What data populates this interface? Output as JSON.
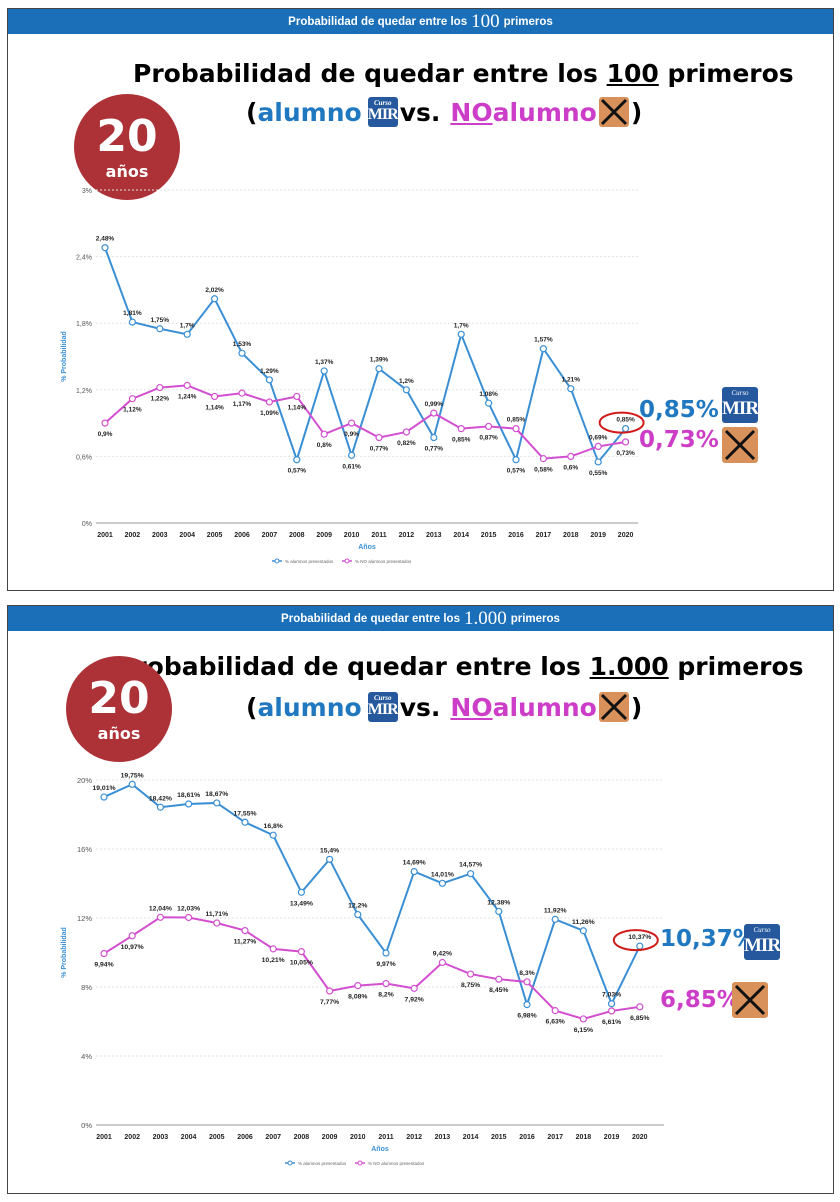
{
  "panel1": {
    "bar": {
      "pre": "Probabilidad de quedar entre los",
      "big": "100",
      "post": "primeros"
    },
    "title": {
      "pre": "Probabilidad de quedar entre los ",
      "num": "100",
      "post": " primeros"
    },
    "subtitle": {
      "open": "(",
      "alumno": "alumno ",
      "vs": "vs.",
      "no": "NO",
      "alumno2": " alumno",
      "close": ")"
    },
    "badge": {
      "num": "20",
      "word": "años"
    },
    "icon_text": {
      "top": "Curso",
      "main": "MIR"
    },
    "side": {
      "blue": "0,85%",
      "pink": "0,73%"
    }
  },
  "panel2": {
    "bar": {
      "pre": "Probabilidad de quedar entre los",
      "big": "1.000",
      "post": "primeros"
    },
    "title": {
      "pre": "Probabilidad de quedar entre los ",
      "num": "1.000",
      "post": " primeros"
    },
    "subtitle": {
      "open": "(",
      "alumno": "alumno ",
      "vs": "vs.",
      "no": "NO",
      "alumno2": " alumno",
      "close": ")"
    },
    "badge": {
      "num": "20",
      "word": "años"
    },
    "icon_text": {
      "top": "Curso",
      "main": "MIR"
    },
    "side": {
      "blue": "10,37%",
      "pink": "6,85%"
    }
  },
  "colors": {
    "blue": "#3a8fd4",
    "pink": "#d24fd0",
    "header": "#1b6fb8",
    "badge": "#ac3237",
    "circle": "#d11b1b"
  },
  "chart_data": [
    {
      "type": "line",
      "xlabel": "Años",
      "ylabel": "% Probabilidad",
      "ylim": [
        0,
        3
      ],
      "yticks": [
        "0%",
        "0,6%",
        "1,2%",
        "1,8%",
        "2,4%",
        "3%"
      ],
      "ytick_values": [
        0,
        0.6,
        1.2,
        1.8,
        2.4,
        3
      ],
      "categories": [
        "2001",
        "2002",
        "2003",
        "2004",
        "2005",
        "2006",
        "2007",
        "2008",
        "2009",
        "2010",
        "2011",
        "2012",
        "2013",
        "2014",
        "2015",
        "2016",
        "2017",
        "2018",
        "2019",
        "2020"
      ],
      "grid": true,
      "legend": "bottom-center",
      "series": [
        {
          "name": "% alumnos presentados",
          "color": "#3a8fd4",
          "values": [
            2.48,
            1.81,
            1.75,
            1.7,
            2.02,
            1.53,
            1.29,
            0.57,
            1.37,
            0.61,
            1.39,
            1.2,
            0.77,
            1.7,
            1.08,
            0.57,
            1.57,
            1.21,
            0.55,
            0.85
          ],
          "labels": [
            "2,48%",
            "1,81%",
            "1,75%",
            "1,7%",
            "2,02%",
            "1,53%",
            "1,29%",
            "0,57%",
            "1,37%",
            "0,61%",
            "1,39%",
            "1,2%",
            "0,77%",
            "1,7%",
            "1,08%",
            "0,57%",
            "1,57%",
            "1,21%",
            "0,55%",
            "0,85%"
          ]
        },
        {
          "name": "% NO alumnos presentados",
          "color": "#d24fd0",
          "values": [
            0.9,
            1.12,
            1.22,
            1.24,
            1.14,
            1.17,
            1.09,
            1.14,
            0.8,
            0.9,
            0.77,
            0.82,
            0.99,
            0.85,
            0.87,
            0.85,
            0.58,
            0.6,
            0.69,
            0.73
          ],
          "labels": [
            "0,9%",
            "1,12%",
            "1,22%",
            "1,24%",
            "1,14%",
            "1,17%",
            "1,09%",
            "1,14%",
            "0,8%",
            "0,9%",
            "0,77%",
            "0,82%",
            "0,99%",
            "0,85%",
            "0,87%",
            "0,85%",
            "0,58%",
            "0,6%",
            "0,69%",
            "0,73%"
          ]
        }
      ]
    },
    {
      "type": "line",
      "xlabel": "Años",
      "ylabel": "% Probabilidad",
      "ylim": [
        0,
        20
      ],
      "yticks": [
        "0%",
        "4%",
        "8%",
        "12%",
        "16%",
        "20%"
      ],
      "ytick_values": [
        0,
        4,
        8,
        12,
        16,
        20
      ],
      "categories": [
        "2001",
        "2002",
        "2003",
        "2004",
        "2005",
        "2006",
        "2007",
        "2008",
        "2009",
        "2010",
        "2011",
        "2012",
        "2013",
        "2014",
        "2015",
        "2016",
        "2017",
        "2018",
        "2019",
        "2020"
      ],
      "grid": true,
      "legend": "bottom-center",
      "series": [
        {
          "name": "% alumnos presentados",
          "color": "#3a8fd4",
          "values": [
            19.01,
            19.75,
            18.42,
            18.61,
            18.67,
            17.55,
            16.8,
            13.49,
            15.4,
            12.2,
            9.97,
            14.69,
            14.01,
            14.57,
            12.38,
            6.98,
            11.92,
            11.26,
            7.03,
            10.37
          ],
          "labels": [
            "19,01%",
            "19,75%",
            "18,42%",
            "18,61%",
            "18,67%",
            "17,55%",
            "16,8%",
            "13,49%",
            "15,4%",
            "12,2%",
            "9,97%",
            "14,69%",
            "14,01%",
            "14,57%",
            "12,38%",
            "6,98%",
            "11,92%",
            "11,26%",
            "7,03%",
            "10,37%"
          ]
        },
        {
          "name": "% NO alumnos presentados",
          "color": "#d24fd0",
          "values": [
            9.94,
            10.97,
            12.04,
            12.03,
            11.71,
            11.27,
            10.21,
            10.05,
            7.77,
            8.08,
            8.2,
            7.92,
            9.42,
            8.75,
            8.45,
            8.3,
            6.63,
            6.15,
            6.61,
            6.85
          ],
          "labels": [
            "9,94%",
            "10,97%",
            "12,04%",
            "12,03%",
            "11,71%",
            "11,27%",
            "10,21%",
            "10,05%",
            "7,77%",
            "8,08%",
            "8,2%",
            "7,92%",
            "9,42%",
            "8,75%",
            "8,45%",
            "8,3%",
            "6,63%",
            "6,15%",
            "6,61%",
            "6,85%"
          ]
        }
      ]
    }
  ]
}
